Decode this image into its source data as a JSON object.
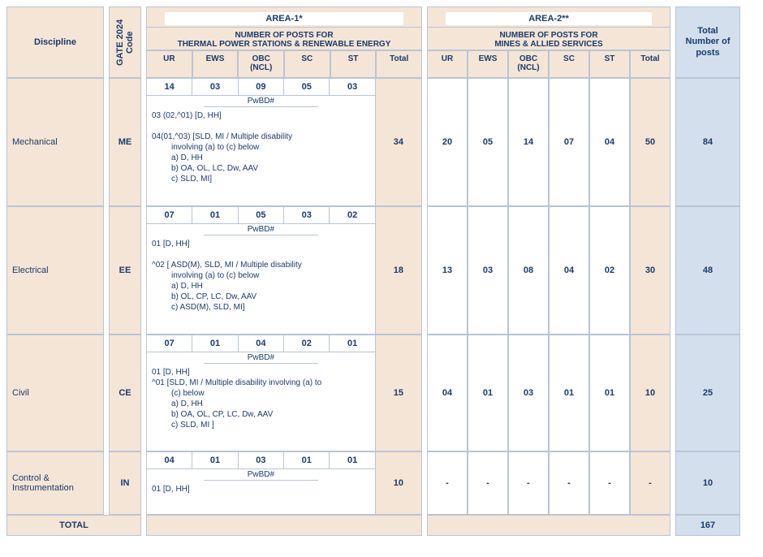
{
  "headers": {
    "discipline": "Discipline",
    "gate": "GATE 2024 Code",
    "area1_title": "AREA-1*",
    "area1_sub": "NUMBER OF POSTS FOR\nTHERMAL POWER STATIONS & RENEWABLE ENERGY",
    "area2_title": "AREA-2**",
    "area2_sub": "NUMBER OF POSTS  FOR\nMINES & ALLIED SERVICES",
    "cats": [
      "UR",
      "EWS",
      "OBC (NCL)",
      "SC",
      "ST",
      "Total"
    ],
    "gtotal": "Total Number of posts",
    "pwbd": "PwBD#",
    "total_label": "TOTAL"
  },
  "rows": [
    {
      "disc": "Mechanical",
      "gate": "ME",
      "a1_nums": [
        "14",
        "03",
        "09",
        "05",
        "03"
      ],
      "a1_total": "34",
      "pwbd_lines": [
        "03 (02,^01) [D, HH]",
        "",
        "04(01,^03)  [SLD, MI  /  Multiple  disability",
        "involving (a) to (c) below",
        "a) D, HH",
        "b) OA, OL, LC, Dw, AAV",
        "c) SLD, MI]"
      ],
      "a2": [
        "20",
        "05",
        "14",
        "07",
        "04",
        "50"
      ],
      "gt": "84",
      "h": 158
    },
    {
      "disc": "Electrical",
      "gate": "EE",
      "a1_nums": [
        "07",
        "01",
        "05",
        "03",
        "02"
      ],
      "a1_total": "18",
      "pwbd_lines": [
        "01 [D, HH]",
        "",
        "^02 [ ASD(M), SLD, MI / Multiple disability",
        "involving (a) to (c) below",
        "a) D, HH",
        "b)  OL, CP, LC, Dw, AAV",
        "c)  ASD(M), SLD, MI]"
      ],
      "a2": [
        "13",
        "03",
        "08",
        "04",
        "02",
        "30"
      ],
      "gt": "48",
      "h": 158
    },
    {
      "disc": "Civil",
      "gate": "CE",
      "a1_nums": [
        "07",
        "01",
        "04",
        "02",
        "01"
      ],
      "a1_total": "15",
      "pwbd_lines": [
        "01 [D, HH]",
        "^01 [SLD, MI / Multiple disability involving (a) to",
        "(c) below",
        "a) D, HH",
        "b) OA, OL, CP, LC, Dw, AAV",
        "c) SLD, MI ]"
      ],
      "a2": [
        "04",
        "01",
        "03",
        "01",
        "01",
        "10"
      ],
      "gt": "25",
      "h": 144
    },
    {
      "disc": "Control & Instrumentation",
      "gate": "IN",
      "a1_nums": [
        "04",
        "01",
        "03",
        "01",
        "01"
      ],
      "a1_total": "10",
      "pwbd_lines": [
        "01 [D, HH]"
      ],
      "a2": [
        "-",
        "-",
        "-",
        "-",
        "-",
        "-"
      ],
      "gt": "10",
      "h": 78
    }
  ],
  "grand_total": "167",
  "colors": {
    "peach": "#f5e5d6",
    "blue": "#d4dfed",
    "text": "#1a3a6e",
    "border": "#b8c4d6"
  }
}
